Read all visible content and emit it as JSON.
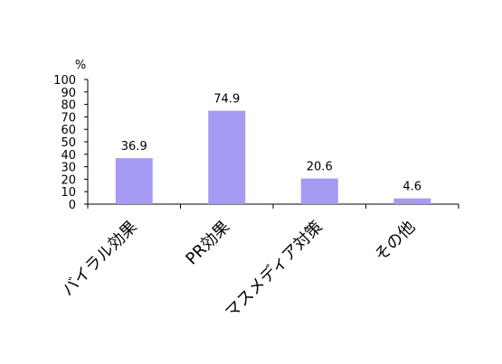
{
  "chart_data": {
    "type": "bar",
    "unit_label": "%",
    "categories": [
      "バイラル効果",
      "PR効果",
      "マスメディア対策",
      "その他"
    ],
    "values": [
      36.9,
      74.9,
      20.6,
      4.6
    ],
    "value_labels": [
      "36.9",
      "74.9",
      "20.6",
      "4.6"
    ],
    "ylim": [
      0,
      100
    ],
    "yticks": [
      "0",
      "10",
      "20",
      "30",
      "40",
      "50",
      "60",
      "70",
      "80",
      "90",
      "100"
    ],
    "grid": false,
    "legend": "none",
    "bar_color": "#a69bf2"
  }
}
